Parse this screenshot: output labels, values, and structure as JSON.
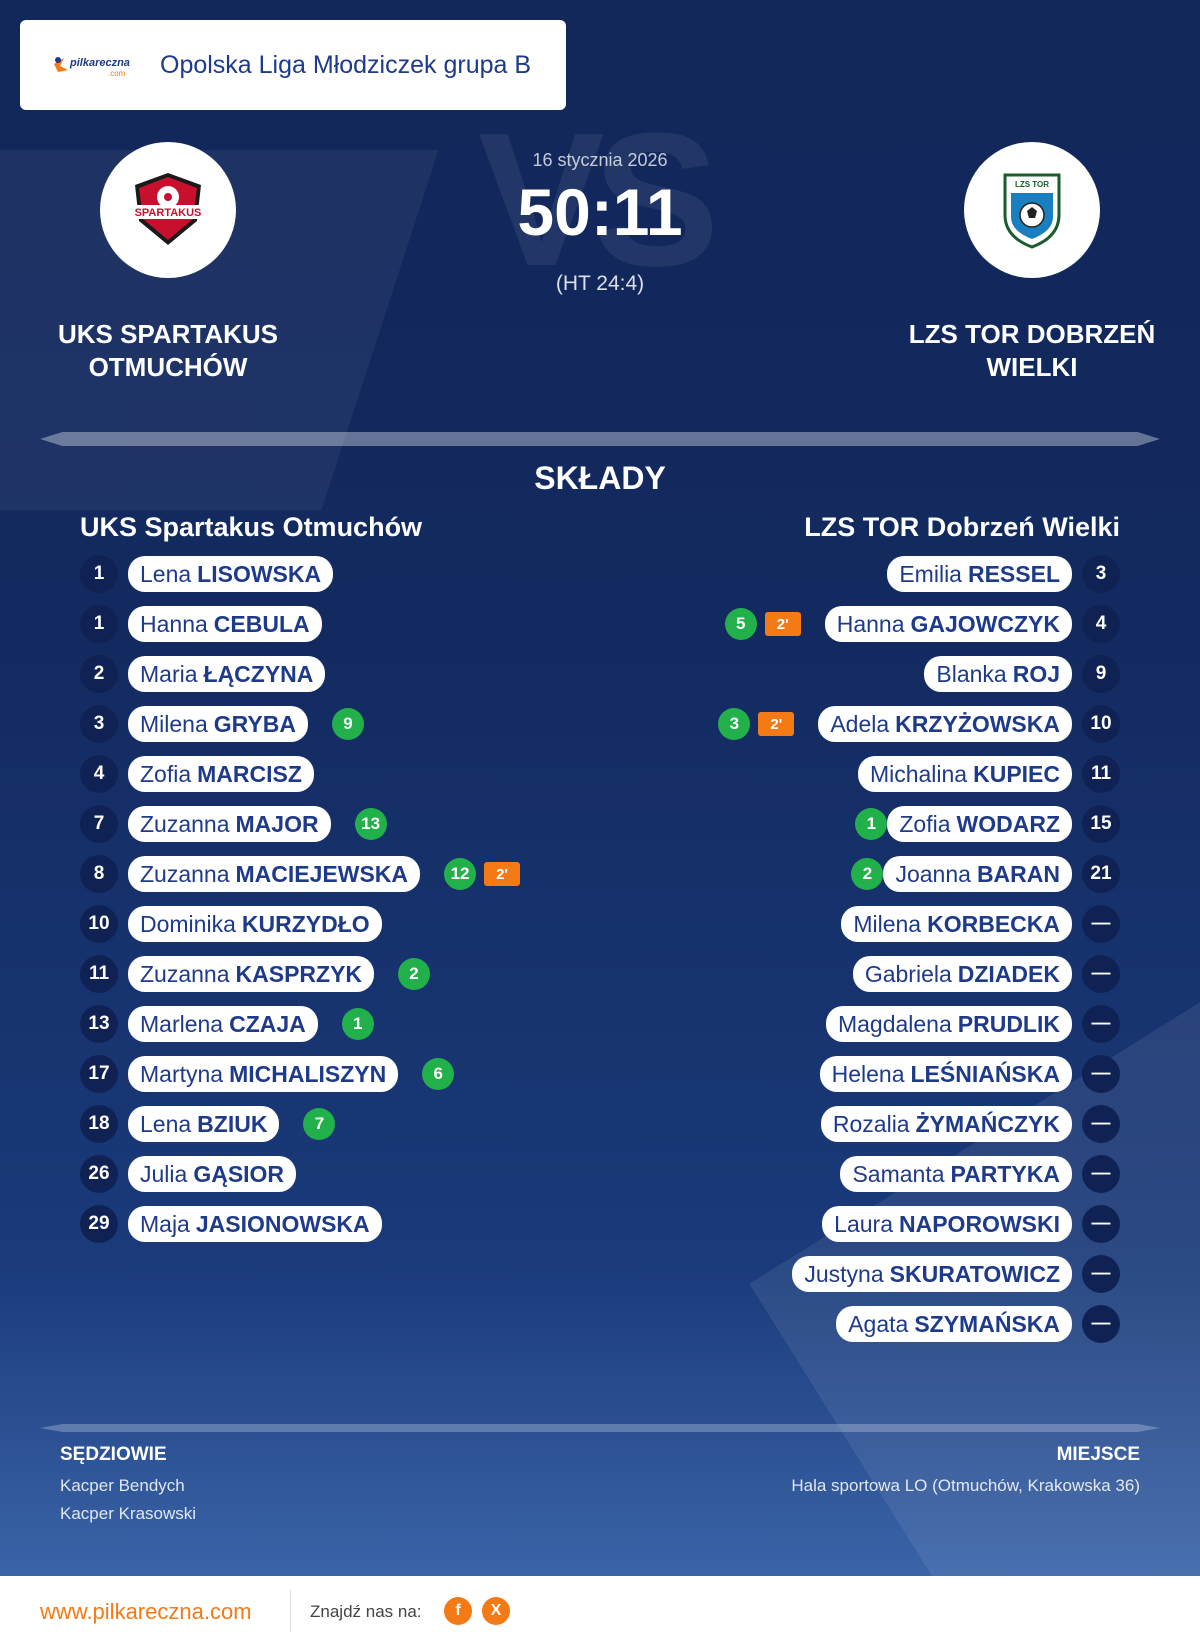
{
  "header": {
    "league_logo_text": "pilkareczna",
    "league_logo_sub": ".com",
    "league_name": "Opolska Liga Młodziczek grupa B"
  },
  "match": {
    "date": "16 stycznia 2026",
    "score": "50:11",
    "halftime": "(HT 24:4)",
    "vs_watermark": "VS",
    "home": {
      "name": "UKS SPARTAKUS OTMUCHÓW",
      "badge_text": "SPARTAKUS",
      "badge_icon": "club-crest-icon",
      "badge_color": "#c8102e"
    },
    "away": {
      "name": "LZS TOR DOBRZEŃ WIELKI",
      "badge_text": "LZS TOR",
      "badge_icon": "football-crest-icon",
      "badge_color": "#1a7fc1"
    }
  },
  "lineups": {
    "title": "SKŁADY",
    "home_team": "UKS Spartakus Otmuchów",
    "away_team": "LZS TOR Dobrzeń Wielki",
    "home": [
      {
        "num": "1",
        "first": "Lena",
        "last": "LISOWSKA",
        "goals": "",
        "pen": ""
      },
      {
        "num": "1",
        "first": "Hanna",
        "last": "CEBULA",
        "goals": "",
        "pen": ""
      },
      {
        "num": "2",
        "first": "Maria",
        "last": "ŁĄCZYNA",
        "goals": "",
        "pen": ""
      },
      {
        "num": "3",
        "first": "Milena",
        "last": "GRYBA",
        "goals": "9",
        "pen": ""
      },
      {
        "num": "4",
        "first": "Zofia",
        "last": "MARCISZ",
        "goals": "",
        "pen": ""
      },
      {
        "num": "7",
        "first": "Zuzanna",
        "last": "MAJOR",
        "goals": "13",
        "pen": ""
      },
      {
        "num": "8",
        "first": "Zuzanna",
        "last": "MACIEJEWSKA",
        "goals": "12",
        "pen": "2'"
      },
      {
        "num": "10",
        "first": "Dominika",
        "last": "KURZYDŁO",
        "goals": "",
        "pen": ""
      },
      {
        "num": "11",
        "first": "Zuzanna",
        "last": "KASPRZYK",
        "goals": "2",
        "pen": ""
      },
      {
        "num": "13",
        "first": "Marlena",
        "last": "CZAJA",
        "goals": "1",
        "pen": ""
      },
      {
        "num": "17",
        "first": "Martyna",
        "last": "MICHALISZYN",
        "goals": "6",
        "pen": ""
      },
      {
        "num": "18",
        "first": "Lena",
        "last": "BZIUK",
        "goals": "7",
        "pen": ""
      },
      {
        "num": "26",
        "first": "Julia",
        "last": "GĄSIOR",
        "goals": "",
        "pen": ""
      },
      {
        "num": "29",
        "first": "Maja",
        "last": "JASIONOWSKA",
        "goals": "",
        "pen": ""
      }
    ],
    "away": [
      {
        "num": "3",
        "first": "Emilia",
        "last": "RESSEL",
        "goals": "",
        "pen": ""
      },
      {
        "num": "4",
        "first": "Hanna",
        "last": "GAJOWCZYK",
        "goals": "5",
        "pen": "2'"
      },
      {
        "num": "9",
        "first": "Blanka",
        "last": "ROJ",
        "goals": "",
        "pen": ""
      },
      {
        "num": "10",
        "first": "Adela",
        "last": "KRZYŻOWSKA",
        "goals": "3",
        "pen": "2'"
      },
      {
        "num": "11",
        "first": "Michalina",
        "last": "KUPIEC",
        "goals": "",
        "pen": ""
      },
      {
        "num": "15",
        "first": "Zofia",
        "last": "WODARZ",
        "goals": "1",
        "pen": ""
      },
      {
        "num": "21",
        "first": "Joanna",
        "last": "BARAN",
        "goals": "2",
        "pen": ""
      },
      {
        "num": "—",
        "first": "Milena",
        "last": "KORBECKA",
        "goals": "",
        "pen": ""
      },
      {
        "num": "—",
        "first": "Gabriela",
        "last": "DZIADEK",
        "goals": "",
        "pen": ""
      },
      {
        "num": "—",
        "first": "Magdalena",
        "last": "PRUDLIK",
        "goals": "",
        "pen": ""
      },
      {
        "num": "—",
        "first": "Helena",
        "last": "LEŚNIAŃSKA",
        "goals": "",
        "pen": ""
      },
      {
        "num": "—",
        "first": "Rozalia",
        "last": "ŻYMAŃCZYK",
        "goals": "",
        "pen": ""
      },
      {
        "num": "—",
        "first": "Samanta",
        "last": "PARTYKA",
        "goals": "",
        "pen": ""
      },
      {
        "num": "—",
        "first": "Laura",
        "last": "NAPOROWSKI",
        "goals": "",
        "pen": ""
      },
      {
        "num": "—",
        "first": "Justyna",
        "last": "SKURATOWICZ",
        "goals": "",
        "pen": ""
      },
      {
        "num": "—",
        "first": "Agata",
        "last": "SZYMAŃSKA",
        "goals": "",
        "pen": ""
      }
    ]
  },
  "officials": {
    "title": "SĘDZIOWIE",
    "referees": [
      "Kacper Bendych",
      "Kacper Krasowski"
    ]
  },
  "venue": {
    "title": "MIEJSCE",
    "name": "Hala sportowa LO (Otmuchów, Krakowska 36)"
  },
  "footer": {
    "site": "www.pilkareczna.com",
    "find_us": "Znajdź nas na:",
    "social": [
      {
        "icon": "facebook-icon",
        "glyph": "f"
      },
      {
        "icon": "x-icon",
        "glyph": "X"
      }
    ],
    "accent_color": "#f47a16"
  },
  "colors": {
    "background": "#132a60",
    "goal_badge": "#22b04b",
    "penalty_badge": "#f47a16",
    "text_dark": "#1e3a8a"
  }
}
